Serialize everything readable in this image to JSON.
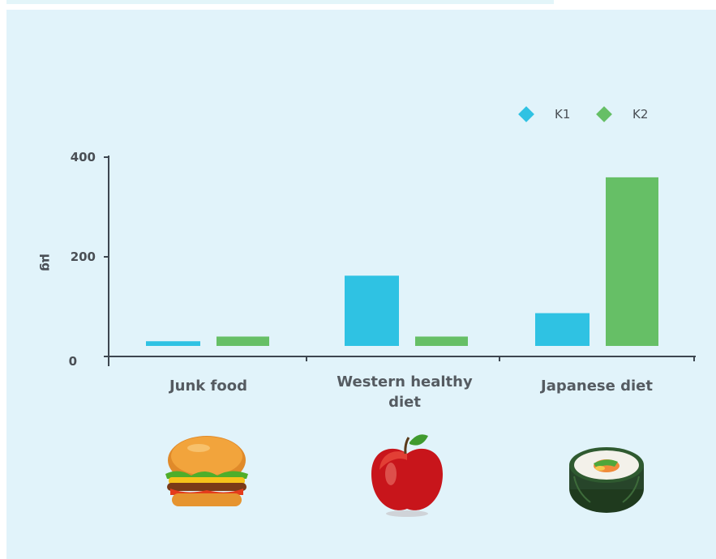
{
  "chart_data": {
    "type": "bar",
    "categories": [
      "Junk food",
      "Western healthy diet",
      "Japanese diet"
    ],
    "category_lines": [
      [
        "Junk food"
      ],
      [
        "Western healthy",
        "diet"
      ],
      [
        "Japanese diet"
      ]
    ],
    "series": [
      {
        "name": "K1",
        "color": "#2fc2e3",
        "values": [
          10,
          150,
          70
        ]
      },
      {
        "name": "K2",
        "color": "#66bf66",
        "values": [
          20,
          20,
          360
        ]
      }
    ],
    "ylabel": "µg",
    "ylim": [
      0,
      400
    ],
    "yticks": [
      0,
      200,
      400
    ],
    "ytick_labels": [
      "0",
      "200",
      "400"
    ],
    "legend_position": "top-right",
    "grid": false
  },
  "icons": {
    "junk_food": "hamburger-icon",
    "western": "red-apple-icon",
    "japanese": "sushi-roll-icon"
  }
}
